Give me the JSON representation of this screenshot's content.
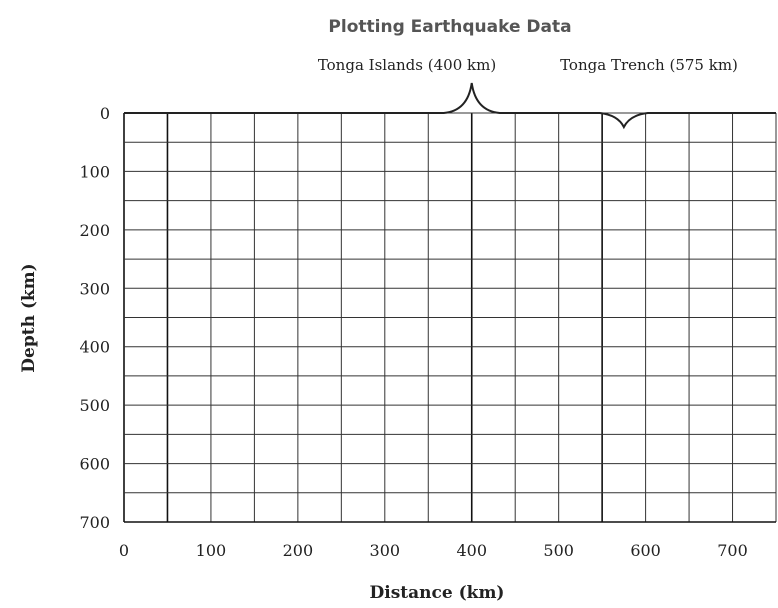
{
  "chart_data": {
    "type": "scatter",
    "title": "Plotting Earthquake Data",
    "xlabel": "Distance (km)",
    "ylabel": "Depth (km)",
    "xlim": [
      0,
      750
    ],
    "ylim": [
      700,
      0
    ],
    "y_inverted": true,
    "grid": true,
    "x_ticks": [
      0,
      100,
      200,
      300,
      400,
      500,
      600,
      700
    ],
    "y_ticks": [
      0,
      100,
      200,
      300,
      400,
      500,
      600,
      700
    ],
    "x_grid_step": 50,
    "y_grid_step": 50,
    "surface_profile": {
      "baseline_depth": 0,
      "features": [
        {
          "kind": "peak",
          "x": 400,
          "label": "Tonga Islands (400 km)"
        },
        {
          "kind": "trench",
          "x": 575,
          "label": "Tonga Trench (575 km)"
        }
      ]
    },
    "series": []
  }
}
